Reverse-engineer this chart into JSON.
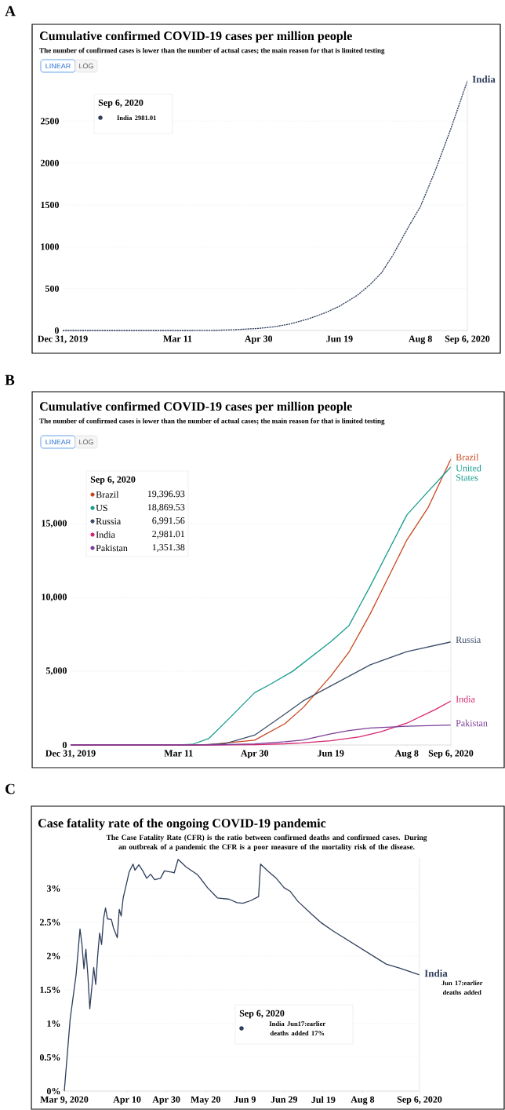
{
  "chart_data": [
    {
      "type": "line",
      "title": "Cumulative confirmed COVID-19 cases per million people",
      "subtitle": "The number of confirmed cases is lower than the number of actual cases; the main reason for that is limited testing",
      "xlim": [
        "2019-12-31",
        "2020-09-06"
      ],
      "xticks": [
        {
          "value": "2019-12-31",
          "label": "Dec 31, 2019"
        },
        {
          "value": "2020-03-11",
          "label": "Mar 11"
        },
        {
          "value": "2020-04-30",
          "label": "Apr 30"
        },
        {
          "value": "2020-06-19",
          "label": "Jun 19"
        },
        {
          "value": "2020-08-08",
          "label": "Aug 8"
        },
        {
          "value": "2020-09-06",
          "label": "Sep 6, 2020"
        }
      ],
      "ylim": [
        0,
        3000
      ],
      "yticks": [
        0,
        500,
        1000,
        1500,
        2000,
        2500
      ],
      "grid": "y",
      "line_style": "dashed",
      "series": [
        {
          "name": "India",
          "color": "#2f3e5c",
          "x": [
            "2019-12-31",
            "2020-03-15",
            "2020-04-01",
            "2020-04-15",
            "2020-04-30",
            "2020-05-10",
            "2020-05-20",
            "2020-05-31",
            "2020-06-10",
            "2020-06-19",
            "2020-06-30",
            "2020-07-08",
            "2020-07-15",
            "2020-07-22",
            "2020-08-01",
            "2020-08-08",
            "2020-08-17",
            "2020-08-27",
            "2020-09-06"
          ],
          "values": [
            0,
            0,
            1,
            9,
            25,
            45,
            80,
            140,
            210,
            290,
            420,
            550,
            690,
            900,
            1250,
            1480,
            1900,
            2420,
            2981.01
          ]
        }
      ],
      "annotations": [
        "A",
        "LINEAR",
        "LOG",
        "Sep 6, 2020",
        "India 2981.01"
      ]
    },
    {
      "type": "line",
      "title": "Cumulative confirmed COVID-19 cases per million people",
      "subtitle": "The number of confirmed cases is lower than the number of actual cases; the main reason for that is limited testing",
      "xlim": [
        "2019-12-31",
        "2020-09-06"
      ],
      "xticks": [
        {
          "value": "2019-12-31",
          "label": "Dec 31, 2019"
        },
        {
          "value": "2020-03-11",
          "label": "Mar 11"
        },
        {
          "value": "2020-04-30",
          "label": "Apr 30"
        },
        {
          "value": "2020-06-19",
          "label": "Jun 19"
        },
        {
          "value": "2020-08-08",
          "label": "Aug 8"
        },
        {
          "value": "2020-09-06",
          "label": "Sep 6, 2020"
        }
      ],
      "ylim": [
        0,
        19600
      ],
      "yticks": [
        0,
        {
          "value": 5000,
          "label": "5,000"
        },
        {
          "value": 10000,
          "label": "10,000"
        },
        {
          "value": 15000,
          "label": "15,000"
        }
      ],
      "grid": "y",
      "series": [
        {
          "name": "Brazil",
          "color": "#c8461e",
          "x": [
            "2019-12-31",
            "2020-03-20",
            "2020-04-01",
            "2020-04-30",
            "2020-05-20",
            "2020-06-01",
            "2020-06-19",
            "2020-07-01",
            "2020-07-15",
            "2020-08-08",
            "2020-08-22",
            "2020-09-06"
          ],
          "values": [
            0,
            0,
            30,
            330,
            1450,
            2550,
            4670,
            6300,
            8900,
            13900,
            16100,
            19396.93
          ]
        },
        {
          "name": "United States",
          "color": "#189c8e",
          "x": [
            "2019-12-31",
            "2020-03-11",
            "2020-03-20",
            "2020-03-31",
            "2020-04-12",
            "2020-04-30",
            "2020-05-10",
            "2020-05-25",
            "2020-06-19",
            "2020-07-01",
            "2020-07-15",
            "2020-08-08",
            "2020-08-22",
            "2020-09-06"
          ],
          "values": [
            0,
            0,
            40,
            450,
            1670,
            3550,
            4100,
            5000,
            7000,
            8100,
            10780,
            15600,
            17200,
            18869.53
          ]
        },
        {
          "name": "Russia",
          "color": "#3d4d6b",
          "x": [
            "2019-12-31",
            "2020-03-25",
            "2020-04-10",
            "2020-04-30",
            "2020-05-20",
            "2020-06-01",
            "2020-06-19",
            "2020-07-15",
            "2020-08-08",
            "2020-09-06"
          ],
          "values": [
            0,
            0,
            80,
            670,
            2100,
            3000,
            4000,
            5440,
            6330,
            6991.56
          ]
        },
        {
          "name": "India",
          "color": "#d6246e",
          "x": [
            "2019-12-31",
            "2020-03-15",
            "2020-04-01",
            "2020-04-15",
            "2020-04-30",
            "2020-05-20",
            "2020-05-31",
            "2020-06-19",
            "2020-07-08",
            "2020-07-22",
            "2020-08-08",
            "2020-08-27",
            "2020-09-06"
          ],
          "values": [
            0,
            0,
            1,
            9,
            25,
            80,
            140,
            290,
            550,
            900,
            1480,
            2420,
            2981.01
          ]
        },
        {
          "name": "Pakistan",
          "color": "#7d3c98",
          "x": [
            "2019-12-31",
            "2020-03-15",
            "2020-04-01",
            "2020-04-30",
            "2020-05-20",
            "2020-06-01",
            "2020-06-19",
            "2020-07-01",
            "2020-07-15",
            "2020-08-08",
            "2020-09-06"
          ],
          "values": [
            0,
            0,
            10,
            75,
            220,
            340,
            750,
            980,
            1150,
            1270,
            1351.38
          ]
        }
      ],
      "annotations": [
        "B",
        "LINEAR",
        "LOG",
        "Sep 6, 2020",
        "Brazil",
        "19,396.93",
        "US",
        "18,869.53",
        "Russia",
        "6,991.56",
        "India",
        "2,981.01",
        "Pakistan",
        "1,351.38"
      ]
    },
    {
      "type": "line",
      "title": "Case fatality rate of the ongoing COVID-19 pandemic",
      "subtitle": "The Case Fatality Rate (CFR) is the ratio between confirmed deaths and confirmed cases. During an outbreak of a pandemic the CFR is a poor measure of the mortality risk of the disease.",
      "xlim": [
        "2020-03-09",
        "2020-09-06"
      ],
      "xticks": [
        {
          "value": "2020-03-09",
          "label": "Mar 9, 2020"
        },
        {
          "value": "2020-04-10",
          "label": "Apr 10"
        },
        {
          "value": "2020-04-30",
          "label": "Apr 30"
        },
        {
          "value": "2020-05-20",
          "label": "May 20"
        },
        {
          "value": "2020-06-09",
          "label": "Jun 9"
        },
        {
          "value": "2020-06-29",
          "label": "Jun 29"
        },
        {
          "value": "2020-07-19",
          "label": "Jul 19"
        },
        {
          "value": "2020-08-08",
          "label": "Aug 8"
        },
        {
          "value": "2020-09-06",
          "label": "Sep 6, 2020"
        }
      ],
      "ylim": [
        0,
        3.45
      ],
      "yticks": [
        {
          "value": 0,
          "label": "0%"
        },
        {
          "value": 0.5,
          "label": "0.5%"
        },
        {
          "value": 1,
          "label": "1%"
        },
        {
          "value": 1.5,
          "label": "1.5%"
        },
        {
          "value": 2,
          "label": "2%"
        },
        {
          "value": 2.5,
          "label": "2.5%"
        },
        {
          "value": 3,
          "label": "3%"
        }
      ],
      "grid": "y",
      "series": [
        {
          "name": "India",
          "color": "#2f3e5c",
          "x": [
            "2020-03-09",
            "2020-03-12",
            "2020-03-15",
            "2020-03-17",
            "2020-03-18",
            "2020-03-19",
            "2020-03-20",
            "2020-03-21",
            "2020-03-22",
            "2020-03-24",
            "2020-03-25",
            "2020-03-26",
            "2020-03-27",
            "2020-03-28",
            "2020-03-29",
            "2020-03-30",
            "2020-03-31",
            "2020-04-02",
            "2020-04-03",
            "2020-04-05",
            "2020-04-06",
            "2020-04-07",
            "2020-04-08",
            "2020-04-10",
            "2020-04-11",
            "2020-04-13",
            "2020-04-14",
            "2020-04-16",
            "2020-04-18",
            "2020-04-20",
            "2020-04-22",
            "2020-04-24",
            "2020-04-27",
            "2020-04-29",
            "2020-05-03",
            "2020-05-04",
            "2020-05-06",
            "2020-05-10",
            "2020-05-16",
            "2020-05-21",
            "2020-05-26",
            "2020-06-01",
            "2020-06-05",
            "2020-06-08",
            "2020-06-12",
            "2020-06-16",
            "2020-06-17",
            "2020-06-21",
            "2020-06-25",
            "2020-06-29",
            "2020-07-02",
            "2020-07-06",
            "2020-07-13",
            "2020-07-18",
            "2020-07-24",
            "2020-08-20",
            "2020-08-27",
            "2020-09-06"
          ],
          "values": [
            0,
            1.07,
            1.72,
            2.4,
            2.17,
            1.81,
            2.1,
            1.72,
            1.22,
            1.83,
            1.58,
            2.0,
            2.34,
            2.17,
            2.55,
            2.71,
            2.55,
            2.54,
            2.42,
            2.27,
            2.69,
            2.59,
            2.86,
            3.11,
            3.24,
            3.36,
            3.27,
            3.35,
            3.26,
            3.15,
            3.21,
            3.13,
            3.15,
            3.26,
            3.24,
            3.23,
            3.43,
            3.32,
            3.2,
            3.01,
            2.86,
            2.84,
            2.79,
            2.78,
            2.82,
            2.88,
            3.36,
            3.25,
            3.15,
            3.01,
            2.96,
            2.81,
            2.62,
            2.49,
            2.37,
            1.88,
            1.82,
            1.72
          ]
        }
      ],
      "annotations": [
        "C",
        "Sep 6, 2020",
        "India Jun17:earlier deaths added 17%",
        "Jun 17:earlier deaths added"
      ]
    }
  ]
}
